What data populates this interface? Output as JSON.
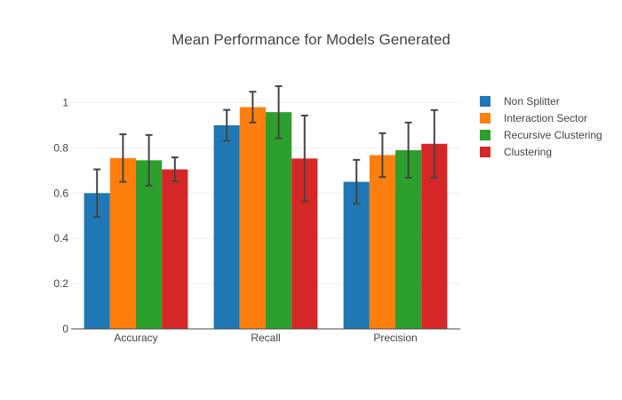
{
  "chart_data": {
    "type": "bar",
    "title": "Mean Performance for Models Generated",
    "xlabel": "",
    "ylabel": "",
    "categories": [
      "Accuracy",
      "Recall",
      "Precision"
    ],
    "ylim": [
      0,
      1.1
    ],
    "yticks": [
      0,
      0.2,
      0.4,
      0.6,
      0.8,
      1
    ],
    "ytick_labels": [
      "0",
      "0.2",
      "0.4",
      "0.6",
      "0.8",
      "1"
    ],
    "grid": true,
    "legend_position": "top-right",
    "error_bars": true,
    "series": [
      {
        "name": "Non Splitter",
        "color": "#1f77b4",
        "values": [
          0.6,
          0.9,
          0.65
        ],
        "err": [
          0.105,
          0.068,
          0.097
        ]
      },
      {
        "name": "Interaction Sector",
        "color": "#ff7f0e",
        "values": [
          0.755,
          0.98,
          0.768
        ],
        "err": [
          0.105,
          0.068,
          0.097
        ]
      },
      {
        "name": "Recursive Clustering",
        "color": "#2ca02c",
        "values": [
          0.745,
          0.958,
          0.79
        ],
        "err": [
          0.112,
          0.115,
          0.122
        ]
      },
      {
        "name": "Clustering",
        "color": "#d62728",
        "values": [
          0.705,
          0.753,
          0.818
        ],
        "err": [
          0.053,
          0.19,
          0.149
        ]
      }
    ]
  }
}
